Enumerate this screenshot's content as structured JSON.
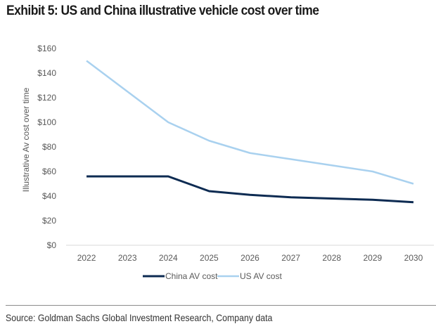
{
  "chart_data": {
    "type": "line",
    "title": "Exhibit 5: US and China illustrative vehicle cost over time",
    "xlabel": "",
    "ylabel": "Illustrative Av cost over time",
    "categories": [
      "2022",
      "2023",
      "2024",
      "2025",
      "2026",
      "2027",
      "2028",
      "2029",
      "2030"
    ],
    "series": [
      {
        "name": "China AV cost",
        "color": "#0d2b52",
        "values": [
          56,
          56,
          56,
          44,
          41,
          39,
          38,
          37,
          35
        ]
      },
      {
        "name": "US AV cost",
        "color": "#a9d1ef",
        "values": [
          150,
          125,
          100,
          85,
          75,
          70,
          65,
          60,
          50
        ]
      }
    ],
    "ylim": [
      0,
      160
    ],
    "yticks": [
      0,
      20,
      40,
      60,
      80,
      100,
      120,
      140,
      160
    ],
    "ytick_labels": [
      "$0",
      "$20",
      "$40",
      "$60",
      "$80",
      "$100",
      "$120",
      "$140",
      "$160"
    ],
    "grid": false,
    "legend_position": "bottom"
  },
  "source": "Source: Goldman Sachs Global Investment Research, Company data"
}
